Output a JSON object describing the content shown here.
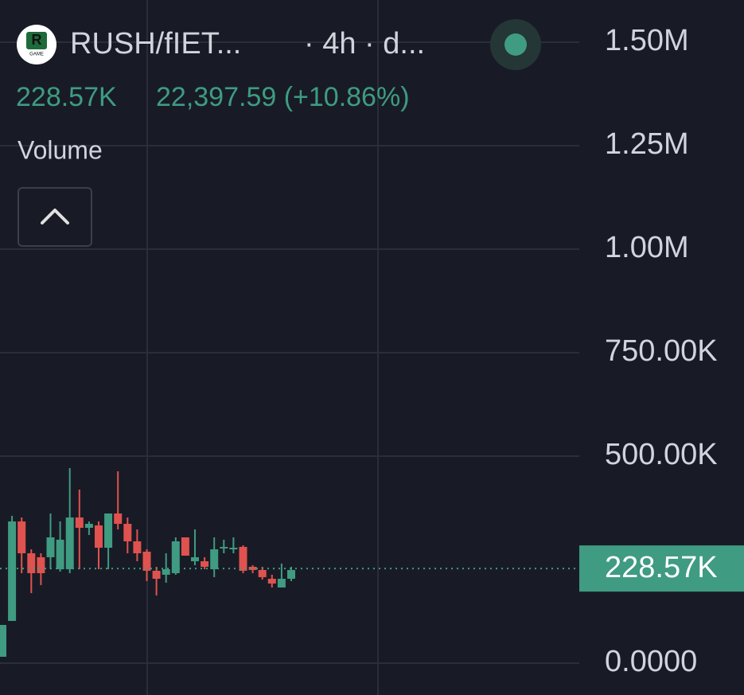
{
  "chart_data": {
    "type": "candlestick",
    "logo_text": "R",
    "logo_subtext": "GAME",
    "symbol": "RUSH/fIET...",
    "interval": "· 4h · d...",
    "header_value": "228.57K",
    "header_change": "22,397.59 (+10.86%)",
    "indicator": "Volume",
    "up_color": "#3f9b82",
    "down_color": "#e0524f",
    "categories": [
      null,
      null,
      null,
      null,
      null,
      null,
      null,
      null,
      null,
      null,
      null,
      null,
      null,
      null,
      null,
      null,
      null,
      null,
      null,
      null,
      null,
      null,
      null,
      null,
      null,
      null,
      null,
      null,
      null,
      null,
      null
    ],
    "open": [
      15400,
      101900,
      342300,
      265400,
      255800,
      255800,
      226900,
      226900,
      351900,
      326900,
      332700,
      278800,
      361500,
      336500,
      294200,
      269200,
      223100,
      213500,
      217300,
      303800,
      246100,
      246100,
      226900,
      280800,
      275000,
      280800,
      232700,
      225000,
      203800,
      182700,
      203800
    ],
    "close": [
      92300,
      342300,
      265400,
      217300,
      217300,
      303800,
      298100,
      351900,
      326900,
      336500,
      278800,
      361500,
      336500,
      294200,
      265400,
      223100,
      203800,
      226900,
      294200,
      259600,
      255800,
      232700,
      275000,
      280800,
      278800,
      223100,
      225000,
      207700,
      192300,
      203800,
      225000
    ],
    "high": [
      92300,
      355800,
      351900,
      275000,
      265400,
      361500,
      342300,
      471100,
      419200,
      342300,
      342300,
      361500,
      463400,
      351900,
      323100,
      275000,
      232700,
      265400,
      303800,
      303800,
      323100,
      255800,
      303800,
      298100,
      303800,
      284600,
      236500,
      232700,
      213500,
      240400,
      232700
    ],
    "low": [
      15400,
      101900,
      217300,
      169200,
      188500,
      226900,
      221100,
      217300,
      226900,
      309600,
      226900,
      226900,
      323100,
      265400,
      246100,
      198100,
      163500,
      194200,
      213500,
      259600,
      236500,
      226900,
      207700,
      265400,
      265400,
      217300,
      217300,
      201900,
      182700,
      182700,
      198100
    ],
    "last_value": {
      "value": 228570,
      "label": "228.57K"
    },
    "ylim": [
      -77000,
      1602000
    ],
    "yticks": [
      {
        "value": 0,
        "label": "0.0000"
      },
      {
        "value": 500000,
        "label": "500.00K"
      },
      {
        "value": 750000,
        "label": "750.00K"
      },
      {
        "value": 1000000,
        "label": "1.00M"
      },
      {
        "value": 1250000,
        "label": "1.25M"
      },
      {
        "value": 1500000,
        "label": "1.50M"
      }
    ],
    "grid": true
  }
}
